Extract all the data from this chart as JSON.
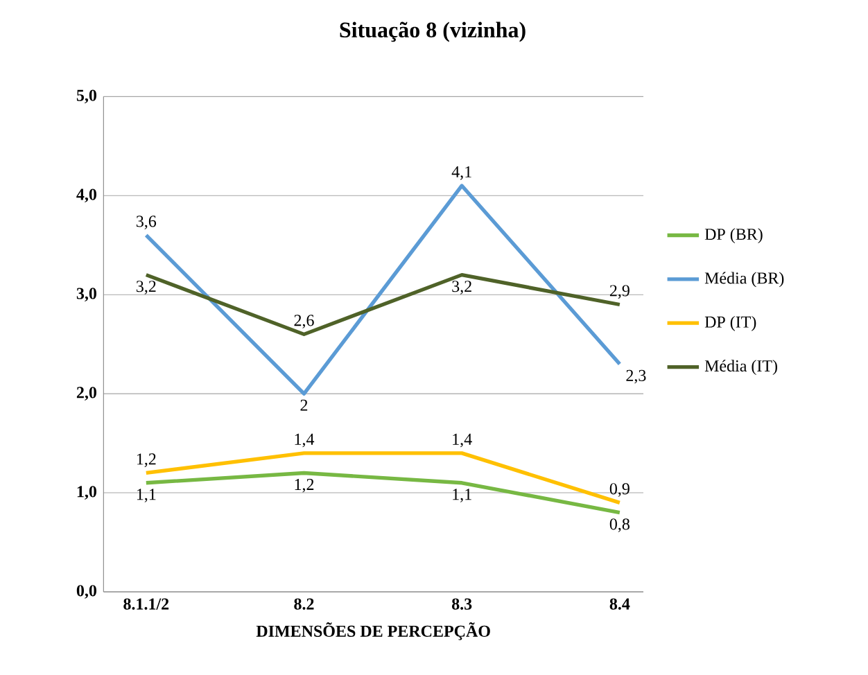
{
  "chart_data": {
    "type": "line",
    "title": "Situação 8 (vizinha)",
    "xlabel": "DIMENSÕES DE PERCEPÇÃO",
    "categories": [
      "8.1.1/2",
      "8.2",
      "8.3",
      "8.4"
    ],
    "series": [
      {
        "name": "DP (BR)",
        "color": "#77b843",
        "values": [
          1.1,
          1.2,
          1.1,
          0.8
        ],
        "value_labels": [
          "1,1",
          "1,2",
          "1,1",
          "0,8"
        ]
      },
      {
        "name": "Média (BR)",
        "color": "#5b9bd5",
        "values": [
          3.6,
          2,
          4.1,
          2.3
        ],
        "value_labels": [
          "3,6",
          "2",
          "4,1",
          "2,3"
        ]
      },
      {
        "name": "DP (IT)",
        "color": "#ffc000",
        "values": [
          1.2,
          1.4,
          1.4,
          0.9
        ],
        "value_labels": [
          "1,2",
          "1,4",
          "1,4",
          "0,9"
        ]
      },
      {
        "name": "Média (IT)",
        "color": "#4f6228",
        "values": [
          3.2,
          2.6,
          3.2,
          2.9
        ],
        "value_labels": [
          "3,2",
          "2,6",
          "3,2",
          "2,9"
        ]
      }
    ],
    "ylim": [
      0,
      5
    ],
    "yticks": [
      {
        "value": 0,
        "label": "0,0"
      },
      {
        "value": 1,
        "label": "1,0"
      },
      {
        "value": 2,
        "label": "2,0"
      },
      {
        "value": 3,
        "label": "3,0"
      },
      {
        "value": 4,
        "label": "4,0"
      },
      {
        "value": 5,
        "label": "5,0"
      }
    ],
    "grid": "y",
    "legend": "right",
    "marker": "none",
    "line_style": "solid"
  }
}
